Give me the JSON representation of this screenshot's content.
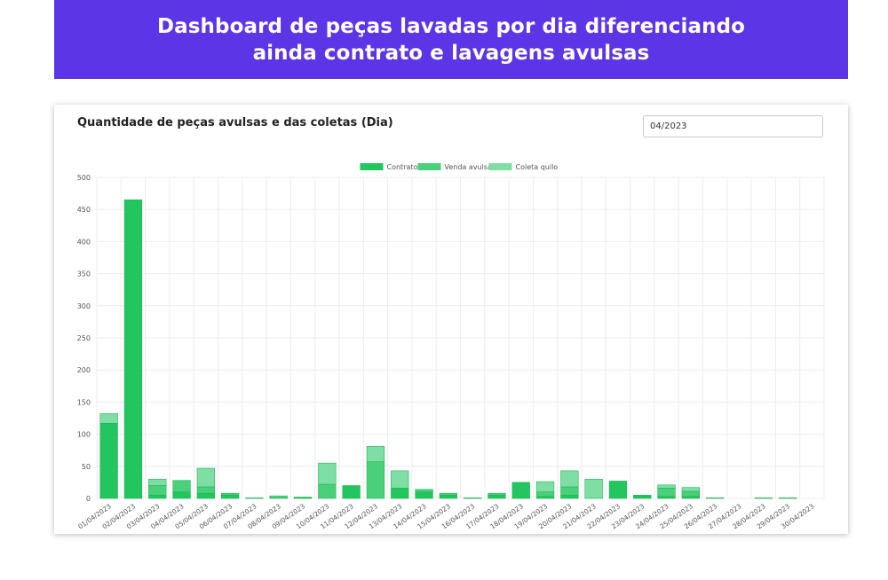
{
  "banner": {
    "line1": "Dashboard de peças lavadas por dia diferenciando",
    "line2": "ainda contrato e lavagens avulsas"
  },
  "card": {
    "title": "Quantidade de peças avulsas e das coletas (Dia)",
    "month_value": "04/2023"
  },
  "chart_data": {
    "type": "bar",
    "stacked": true,
    "grid": true,
    "legend_position": "top-center",
    "ylim": [
      0,
      500
    ],
    "yticks": [
      0,
      50,
      100,
      150,
      200,
      250,
      300,
      350,
      400,
      450,
      500
    ],
    "categories": [
      "01/04/2023",
      "02/04/2023",
      "03/04/2023",
      "04/04/2023",
      "05/04/2023",
      "06/04/2023",
      "07/04/2023",
      "08/04/2023",
      "09/04/2023",
      "10/04/2023",
      "11/04/2023",
      "12/04/2023",
      "13/04/2023",
      "14/04/2023",
      "15/04/2023",
      "16/04/2023",
      "17/04/2023",
      "18/04/2023",
      "19/04/2023",
      "20/04/2023",
      "21/04/2023",
      "22/04/2023",
      "23/04/2023",
      "24/04/2023",
      "25/04/2023",
      "26/04/2023",
      "27/04/2023",
      "28/04/2023",
      "29/04/2023",
      "30/04/2023"
    ],
    "series": [
      {
        "name": "Contrato",
        "color": "#22c55e",
        "values": [
          117,
          465,
          5,
          10,
          8,
          5,
          0,
          0,
          1,
          0,
          20,
          0,
          16,
          10,
          5,
          0,
          5,
          25,
          3,
          5,
          0,
          27,
          4,
          3,
          3,
          0,
          0,
          0,
          0,
          0
        ]
      },
      {
        "name": "Venda avulsa",
        "color": "#4ad07a",
        "values": [
          0,
          0,
          15,
          18,
          10,
          3,
          0,
          2,
          1,
          22,
          0,
          57,
          0,
          4,
          3,
          0,
          3,
          0,
          7,
          13,
          0,
          0,
          1,
          13,
          8,
          0,
          0,
          0,
          0,
          0
        ]
      },
      {
        "name": "Coleta quilo",
        "color": "#7fdea3",
        "values": [
          15,
          0,
          10,
          0,
          29,
          0,
          1,
          2,
          0,
          33,
          0,
          24,
          27,
          0,
          0,
          1,
          0,
          0,
          16,
          25,
          30,
          0,
          0,
          5,
          6,
          1,
          0,
          1,
          1,
          0
        ]
      }
    ]
  }
}
